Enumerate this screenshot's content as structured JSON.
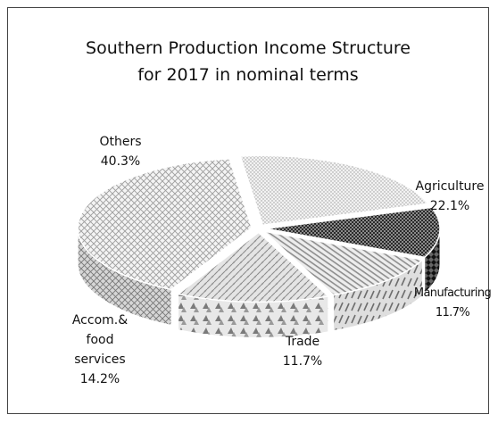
{
  "chart_data": {
    "type": "pie",
    "style": "3d-exploded",
    "title": "Southern Production Income Structure",
    "subtitle": "for 2017 in nominal terms",
    "slices": [
      {
        "name": "Agriculture",
        "value": 22.1,
        "label": "22.1%",
        "pattern": "dots"
      },
      {
        "name": "Manufacturing",
        "value": 11.7,
        "label": "11.7%",
        "pattern": "dark-checker"
      },
      {
        "name": "Trade",
        "value": 11.7,
        "label": "11.7%",
        "pattern": "diagonal-stripes"
      },
      {
        "name_lines": [
          "Accom.&",
          "food",
          "services"
        ],
        "value": 14.2,
        "label": "14.2%",
        "pattern": "weave"
      },
      {
        "name": "Others",
        "value": 40.3,
        "label": "40.3%",
        "pattern": "crosshatch"
      }
    ]
  }
}
